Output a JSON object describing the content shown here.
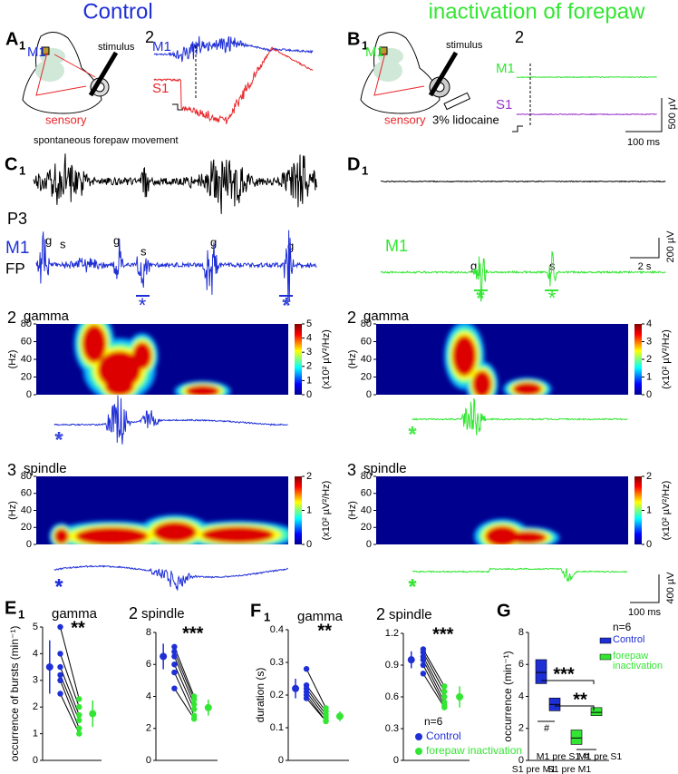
{
  "header": {
    "control": "Control",
    "inactivation": "inactivation of forepaw"
  },
  "A": {
    "label": "A",
    "sub": "1",
    "m1": "M1",
    "stimulus": "stimulus",
    "sensory": "sensory",
    "panel2": "2",
    "trace_m1": "M1",
    "trace_s1": "S1"
  },
  "B": {
    "label": "B",
    "sub": "1",
    "m1": "M1",
    "stimulus": "stimulus",
    "sensory": "sensory",
    "drug": "3% lidocaine",
    "panel2": "2",
    "trace_m1": "M1",
    "trace_s1": "S1",
    "scale_v": "500 µV",
    "scale_t": "100 ms"
  },
  "C": {
    "movement": "spontaneous forepaw movement",
    "label": "C",
    "sub": "1",
    "age": "P3",
    "m1": "M1",
    "fp": "FP",
    "events": [
      "g",
      "s",
      "g",
      "s",
      "g",
      "g"
    ],
    "stars": [
      "*",
      "*"
    ]
  },
  "D": {
    "label": "D",
    "sub": "1",
    "m1": "M1",
    "events": [
      "g",
      "s"
    ],
    "stars": [
      "*",
      "*"
    ],
    "scale_v": "200 µV",
    "scale_t": "2 s",
    "scale2_v": "400 µV",
    "scale2_t": "100 ms"
  },
  "spectrograms": [
    {
      "panel": "2",
      "title": "gamma",
      "ylabel": "(Hz)",
      "ylim": [
        0,
        80
      ],
      "yticks": [
        0,
        20,
        40,
        60,
        80
      ],
      "cbar_lim": [
        0,
        5
      ],
      "cbar_ticks": [
        0,
        1,
        2,
        3,
        4,
        5
      ],
      "cbar_label": "(x10² µV²/Hz)",
      "star": "*"
    },
    {
      "panel": "3",
      "title": "spindle",
      "ylabel": "(Hz)",
      "ylim": [
        0,
        80
      ],
      "yticks": [
        0,
        20,
        40,
        60,
        80
      ],
      "cbar_lim": [
        0,
        2
      ],
      "cbar_ticks": [
        0,
        1,
        2
      ],
      "cbar_label": "(x10² µV²/Hz)",
      "star": "*"
    },
    {
      "panel": "2",
      "title": "gamma",
      "ylabel": "(Hz)",
      "ylim": [
        0,
        80
      ],
      "yticks": [
        0,
        20,
        40,
        60,
        80
      ],
      "cbar_lim": [
        0,
        4
      ],
      "cbar_ticks": [
        0,
        1,
        2,
        3,
        4
      ],
      "cbar_label": "(x10² µV²/Hz)",
      "star": "*"
    },
    {
      "panel": "3",
      "title": "spindle",
      "ylabel": "(Hz)",
      "ylim": [
        0,
        80
      ],
      "yticks": [
        0,
        20,
        40,
        60,
        80
      ],
      "cbar_lim": [
        0,
        2
      ],
      "cbar_ticks": [
        0,
        1,
        2
      ],
      "cbar_label": "(x10² µV²/Hz)",
      "star": "*"
    }
  ],
  "E1": {
    "label": "E",
    "sub": "1",
    "title": "gamma",
    "ylabel": "occurrence of bursts (min⁻¹)",
    "ylim": [
      0,
      5
    ],
    "yticks": [
      0,
      1,
      2,
      3,
      4,
      5
    ],
    "significance": "**",
    "series": [
      {
        "color": "#1f2fd6",
        "values": [
          5,
          4,
          3.5,
          3.2,
          3,
          2.5
        ],
        "mean": 3.5,
        "error": 1
      },
      {
        "color": "#33e633",
        "values": [
          2.3,
          2,
          1.7,
          1.5,
          1.2,
          1
        ],
        "mean": 1.75,
        "error": 0.5
      }
    ]
  },
  "E2": {
    "label": "2",
    "title": "spindle",
    "ylim": [
      0,
      8
    ],
    "yticks": [
      0,
      2,
      4,
      6,
      8
    ],
    "significance": "***",
    "series": [
      {
        "color": "#1f2fd6",
        "values": [
          7.1,
          6.8,
          6.5,
          6,
          5.5,
          4.5
        ],
        "mean": 6.5,
        "error": 0.8
      },
      {
        "color": "#33e633",
        "values": [
          4,
          3.8,
          3.5,
          3.2,
          2.8,
          2.6
        ],
        "mean": 3.3,
        "error": 0.5
      }
    ]
  },
  "F1": {
    "label": "F",
    "sub": "1",
    "title": "gamma",
    "ylabel": "duration (s)",
    "ylim": [
      0,
      0.4
    ],
    "yticks": [
      0,
      0.1,
      0.2,
      0.3,
      0.4
    ],
    "significance": "**",
    "series": [
      {
        "color": "#1f2fd6",
        "values": [
          0.28,
          0.23,
          0.22,
          0.21,
          0.2,
          0.19
        ],
        "mean": 0.22,
        "error": 0.03
      },
      {
        "color": "#33e633",
        "values": [
          0.16,
          0.15,
          0.14,
          0.13,
          0.12,
          0.12
        ],
        "mean": 0.135,
        "error": 0.015
      }
    ]
  },
  "F2": {
    "label": "2",
    "title": "spindle",
    "ylim": [
      0,
      1.2
    ],
    "yticks": [
      0,
      0.3,
      0.6,
      0.9,
      1.2
    ],
    "significance": "***",
    "n": "n=6",
    "series": [
      {
        "name": "Control",
        "color": "#1f2fd6",
        "values": [
          1.05,
          1.02,
          0.98,
          0.95,
          0.9,
          0.82
        ],
        "mean": 0.95,
        "error": 0.08
      },
      {
        "name": "forepaw inactivation",
        "color": "#33e633",
        "values": [
          0.7,
          0.65,
          0.6,
          0.55,
          0.52,
          0.5
        ],
        "mean": 0.6,
        "error": 0.1
      }
    ]
  },
  "G": {
    "label": "G",
    "ylabel": "occurrence (min⁻¹)",
    "ylim": [
      0,
      8
    ],
    "yticks": [
      0,
      2,
      4,
      6,
      8
    ],
    "categories": [
      "S1 pre M1",
      "M1 pre S1"
    ],
    "n": "n=6",
    "annotations": [
      "***",
      "**",
      "#",
      "#"
    ],
    "series": [
      {
        "name": "Control",
        "color": "#1f2fd6",
        "low": [
          4.8,
          3.1
        ],
        "high": [
          6.3,
          3.9
        ],
        "mean": [
          5.5,
          3.5
        ]
      },
      {
        "name": "forepaw inactivation",
        "color": "#33e633",
        "low": [
          1,
          2.8
        ],
        "high": [
          1.9,
          3.3
        ],
        "mean": [
          1.4,
          3
        ]
      }
    ]
  }
}
